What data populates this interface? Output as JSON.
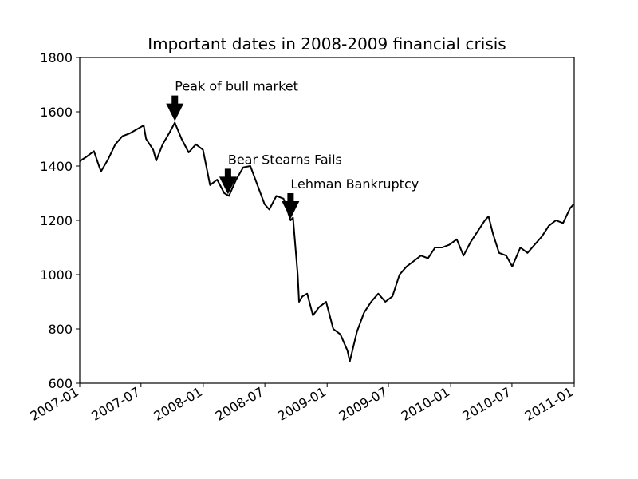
{
  "chart_data": {
    "type": "line",
    "title": "Important dates in 2008-2009 financial crisis",
    "xlabel": "",
    "ylabel": "",
    "xlim": [
      "2007-01",
      "2011-01"
    ],
    "ylim": [
      600,
      1800
    ],
    "grid": false,
    "line_color": "#000000",
    "xticks": [
      "2007-01",
      "2007-07",
      "2008-01",
      "2008-07",
      "2009-01",
      "2009-07",
      "2010-01",
      "2010-07",
      "2011-01"
    ],
    "yticks": [
      600,
      800,
      1000,
      1200,
      1400,
      1600,
      1800
    ],
    "series": [
      {
        "x": [
          "2007-01-01",
          "2007-01-22",
          "2007-02-12",
          "2007-02-27",
          "2007-03-05",
          "2007-03-26",
          "2007-04-16",
          "2007-05-07",
          "2007-05-28",
          "2007-06-18",
          "2007-07-09",
          "2007-07-16",
          "2007-08-06",
          "2007-08-15",
          "2007-09-03",
          "2007-09-24",
          "2007-10-09",
          "2007-10-29",
          "2007-11-19",
          "2007-12-10",
          "2007-12-31",
          "2008-01-21",
          "2008-02-11",
          "2008-03-03",
          "2008-03-17",
          "2008-04-07",
          "2008-04-28",
          "2008-05-19",
          "2008-06-09",
          "2008-06-30",
          "2008-07-14",
          "2008-08-04",
          "2008-08-25",
          "2008-09-15",
          "2008-09-22",
          "2008-10-06",
          "2008-10-10",
          "2008-10-20",
          "2008-11-03",
          "2008-11-20",
          "2008-12-08",
          "2008-12-29",
          "2009-01-19",
          "2009-02-09",
          "2009-03-02",
          "2009-03-09",
          "2009-03-30",
          "2009-04-20",
          "2009-05-11",
          "2009-06-01",
          "2009-06-22",
          "2009-07-13",
          "2009-08-03",
          "2009-08-24",
          "2009-09-14",
          "2009-10-05",
          "2009-10-26",
          "2009-11-16",
          "2009-12-07",
          "2009-12-28",
          "2010-01-19",
          "2010-02-08",
          "2010-03-01",
          "2010-03-22",
          "2010-04-12",
          "2010-04-23",
          "2010-05-06",
          "2010-05-24",
          "2010-06-14",
          "2010-07-02",
          "2010-07-26",
          "2010-08-16",
          "2010-09-06",
          "2010-09-27",
          "2010-10-18",
          "2010-11-08",
          "2010-11-29",
          "2010-12-20",
          "2010-12-31"
        ],
        "y": [
          1418,
          1435,
          1455,
          1400,
          1380,
          1425,
          1480,
          1510,
          1520,
          1535,
          1550,
          1500,
          1460,
          1420,
          1480,
          1525,
          1560,
          1500,
          1450,
          1480,
          1460,
          1330,
          1350,
          1300,
          1290,
          1350,
          1395,
          1400,
          1330,
          1260,
          1240,
          1290,
          1280,
          1200,
          1210,
          1000,
          900,
          920,
          930,
          850,
          880,
          900,
          800,
          780,
          720,
          680,
          790,
          860,
          900,
          930,
          900,
          920,
          1000,
          1030,
          1050,
          1070,
          1060,
          1100,
          1100,
          1110,
          1130,
          1070,
          1120,
          1160,
          1200,
          1215,
          1150,
          1080,
          1070,
          1030,
          1100,
          1080,
          1110,
          1140,
          1180,
          1200,
          1190,
          1245,
          1260
        ]
      }
    ],
    "annotations": [
      {
        "text": "Peak of bull market",
        "x": "2007-10-09",
        "y": 1560
      },
      {
        "text": "Bear Stearns Fails",
        "x": "2008-03-14",
        "y": 1290
      },
      {
        "text": "Lehman Bankruptcy",
        "x": "2008-09-15",
        "y": 1200
      }
    ]
  }
}
